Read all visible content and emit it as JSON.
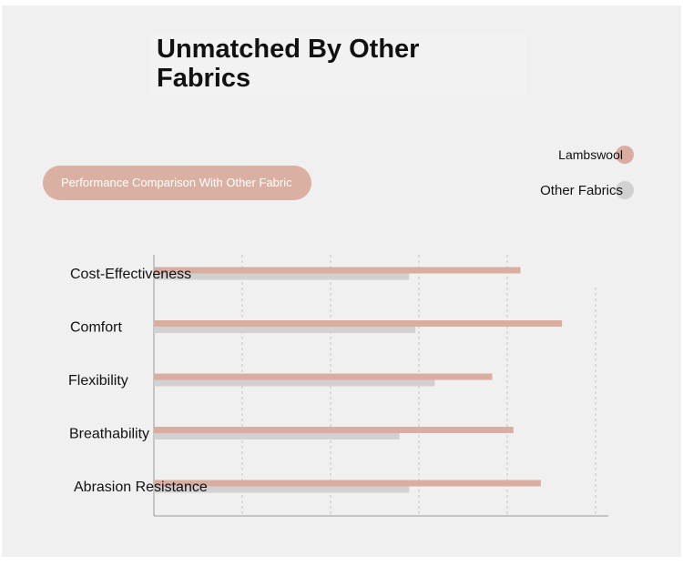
{
  "title": "Unmatched By Other\nFabrics",
  "pill_label": "Performance Comparison With Other Fabric",
  "colors": {
    "lambswool": "#d9aea1",
    "other": "#d2d0d0",
    "background": "#f1f0f0",
    "grid": "#c4c4c4",
    "axis": "#9a9a9a"
  },
  "chart_data": {
    "type": "bar",
    "orientation": "horizontal",
    "title": "",
    "xlabel": "",
    "ylabel": "",
    "categories": [
      "Cost-Effectiveness",
      "Comfort",
      "Flexibility",
      "Breathability",
      "Abrasion Resistance"
    ],
    "series": [
      {
        "name": "Lambswool",
        "color": "#d9aea1",
        "values": [
          4.15,
          4.62,
          3.83,
          4.07,
          4.38
        ]
      },
      {
        "name": "Other Fabrics",
        "color": "#d2d0d0",
        "values": [
          2.89,
          2.96,
          3.18,
          2.78,
          2.89
        ]
      }
    ],
    "xlim": [
      0,
      5
    ],
    "grid": true,
    "grid_style": "dashed vertical",
    "tick_labels_shown": false,
    "legend_position": "top-right"
  }
}
